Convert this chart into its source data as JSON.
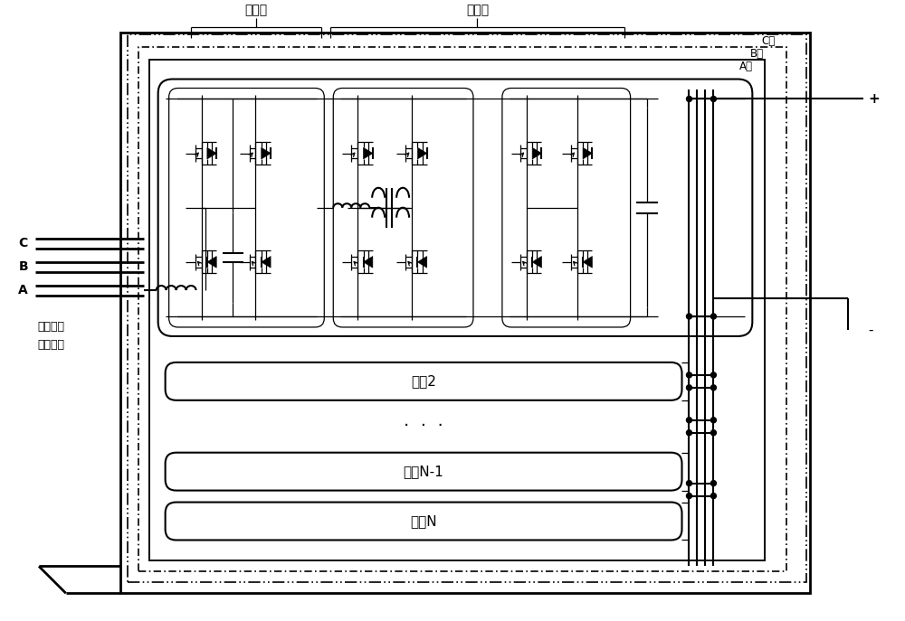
{
  "bg_color": "#ffffff",
  "input_stage_label": "输入级",
  "isolation_stage_label": "隔离级",
  "phase_C_label": "C相",
  "phase_B_label": "B相",
  "phase_A_label": "A相",
  "ac_port_line1": "中、高压",
  "ac_port_line2": "交流端口",
  "C_label": "C",
  "B_label": "B",
  "A_label": "A",
  "plus_label": "+",
  "minus_label": "-",
  "module2_label": "模组2",
  "dots_label": "...",
  "moduleN1_label": "模组N-1",
  "moduleN_label": "模组N"
}
